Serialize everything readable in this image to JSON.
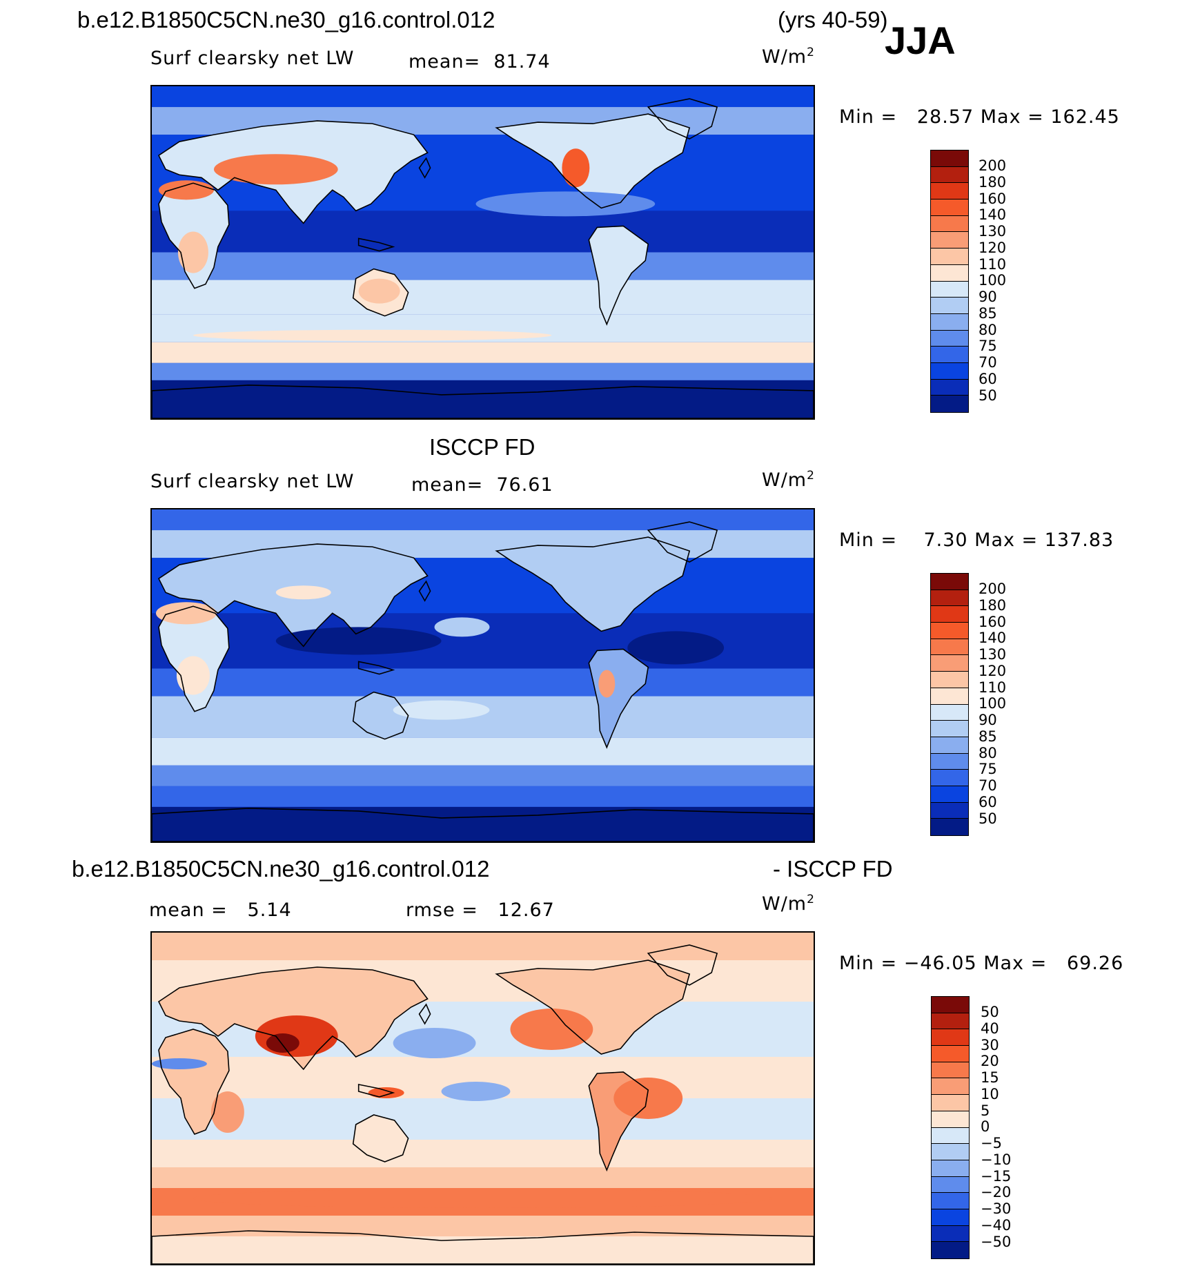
{
  "header": {
    "case_name": "b.e12.B1850C5CN.ne30_g16.control.012",
    "years": "(yrs 40-59)",
    "season": "JJA"
  },
  "panels": [
    {
      "variable": "Surf clearsky net LW",
      "mean_text": "mean=  81.74",
      "units_base": "W/m",
      "units_exp": "2",
      "minmax_text": "Min =   28.57 Max = 162.45",
      "scheme": "model"
    },
    {
      "title": "ISCCP FD",
      "variable": "Surf clearsky net LW",
      "mean_text": "mean=  76.61",
      "units_base": "W/m",
      "units_exp": "2",
      "minmax_text": "Min =    7.30 Max = 137.83",
      "scheme": "obs"
    },
    {
      "title_left": "b.e12.B1850C5CN.ne30_g16.control.012",
      "title_right": "- ISCCP FD",
      "mean_text": "mean =   5.14",
      "rmse_text": "rmse =   12.67",
      "units_base": "W/m",
      "units_exp": "2",
      "minmax_text": "Min = −46.05 Max =   69.26",
      "scheme": "diff"
    }
  ],
  "colorbars": {
    "absolute": {
      "labels": [
        "200",
        "180",
        "160",
        "140",
        "130",
        "120",
        "110",
        "100",
        "90",
        "85",
        "80",
        "75",
        "70",
        "60",
        "50"
      ],
      "colors": [
        "#7a0a08",
        "#b3200f",
        "#e03816",
        "#f55a2a",
        "#f7794b",
        "#f99d76",
        "#fcc6a6",
        "#fde6d4",
        "#d7e8f8",
        "#b1cdf3",
        "#8aaeef",
        "#5f8cec",
        "#3366e8",
        "#0a44e0",
        "#0a2db8",
        "#031b86"
      ]
    },
    "difference": {
      "labels": [
        "50",
        "40",
        "30",
        "20",
        "15",
        "10",
        "5",
        "0",
        "−5",
        "−10",
        "−15",
        "−20",
        "−30",
        "−40",
        "−50"
      ],
      "colors": [
        "#7a0a08",
        "#b3200f",
        "#e03816",
        "#f55a2a",
        "#f7794b",
        "#f99d76",
        "#fcc6a6",
        "#fde6d4",
        "#d7e8f8",
        "#b1cdf3",
        "#8aaeef",
        "#5f8cec",
        "#3366e8",
        "#0a44e0",
        "#0a2db8",
        "#031b86"
      ]
    }
  },
  "map_colors": {
    "coast": "#000000",
    "deep_blue": "#031b86",
    "mid_blue": "#0a44e0",
    "light_blue": "#d7e8f8",
    "peach": "#fde6d4",
    "red": "#e03816"
  }
}
